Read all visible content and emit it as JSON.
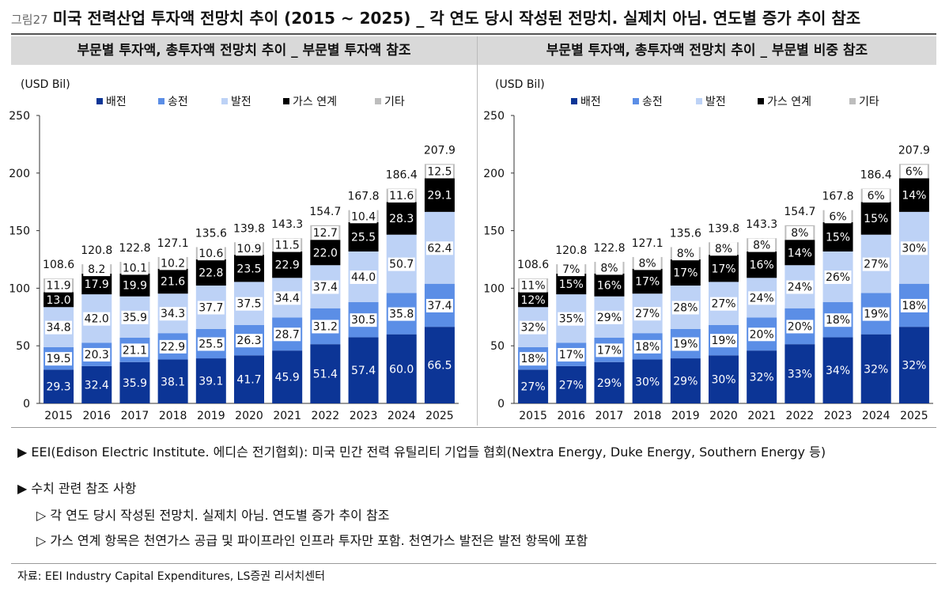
{
  "figure": {
    "number": "그림27",
    "title": "미국 전력산업 투자액 전망치 추이 (2015 ~ 2025) _ 각 연도 당시 작성된 전망치. 실제치 아님. 연도별 증가 추이 참조"
  },
  "colors": {
    "배전": "#0c3596",
    "송전": "#5b8ee6",
    "발전": "#bdd2f6",
    "가스 연계": "#000000",
    "기타": "#bdbdbd"
  },
  "chart_data": [
    {
      "type": "bar",
      "stacked": true,
      "panel_title": "부문별 투자액, 총투자액 전망치 추이 _ 부문별 투자액 참조",
      "unit_label": "(USD Bil)",
      "categories": [
        "2015",
        "2016",
        "2017",
        "2018",
        "2019",
        "2020",
        "2021",
        "2022",
        "2023",
        "2024",
        "2025"
      ],
      "series": [
        {
          "name": "배전",
          "values": [
            29.3,
            32.4,
            35.9,
            38.1,
            39.1,
            41.7,
            45.9,
            51.4,
            57.4,
            60.0,
            66.5
          ],
          "labels": [
            "29.3",
            "32.4",
            "35.9",
            "38.1",
            "39.1",
            "41.7",
            "45.9",
            "51.4",
            "57.4",
            "60.0",
            "66.5"
          ]
        },
        {
          "name": "송전",
          "values": [
            19.5,
            20.3,
            21.1,
            22.9,
            25.5,
            26.3,
            28.7,
            31.2,
            30.5,
            35.8,
            37.4
          ],
          "labels": [
            "19.5",
            "20.3",
            "21.1",
            "22.9",
            "25.5",
            "26.3",
            "28.7",
            "31.2",
            "30.5",
            "35.8",
            "37.4"
          ]
        },
        {
          "name": "발전",
          "values": [
            34.8,
            42.0,
            35.9,
            34.3,
            37.7,
            37.5,
            34.4,
            37.4,
            44.0,
            50.7,
            62.4
          ],
          "labels": [
            "34.8",
            "42.0",
            "35.9",
            "34.3",
            "37.7",
            "37.5",
            "34.4",
            "37.4",
            "44.0",
            "50.7",
            "62.4"
          ]
        },
        {
          "name": "가스 연계",
          "values": [
            13.0,
            17.9,
            19.9,
            21.6,
            22.8,
            23.5,
            22.9,
            22.0,
            25.5,
            28.3,
            29.1
          ],
          "labels": [
            "13.0",
            "17.9",
            "19.9",
            "21.6",
            "22.8",
            "23.5",
            "22.9",
            "22.0",
            "25.5",
            "28.3",
            "29.1"
          ]
        },
        {
          "name": "기타",
          "values": [
            11.9,
            8.2,
            10.1,
            10.2,
            10.6,
            10.9,
            11.5,
            12.7,
            10.4,
            11.6,
            12.5
          ],
          "labels": [
            "11.9",
            "8.2",
            "10.1",
            "10.2",
            "10.6",
            "10.9",
            "11.5",
            "12.7",
            "10.4",
            "11.6",
            "12.5"
          ]
        }
      ],
      "totals": [
        108.6,
        120.8,
        122.8,
        127.1,
        135.6,
        139.8,
        143.3,
        154.7,
        167.8,
        186.4,
        207.9
      ],
      "total_labels": [
        "108.6",
        "120.8",
        "122.8",
        "127.1",
        "135.6",
        "139.8",
        "143.3",
        "154.7",
        "167.8",
        "186.4",
        "207.9"
      ],
      "ylim": [
        0,
        250
      ],
      "yticks": [
        0,
        50,
        100,
        150,
        200,
        250
      ],
      "ytick_labels": [
        "0",
        "50",
        "100",
        "150",
        "200",
        "250"
      ],
      "grid": false,
      "legend_position": "top"
    },
    {
      "type": "bar",
      "stacked": true,
      "panel_title": "부문별 투자액, 총투자액 전망치 추이 _ 부문별 비중 참조",
      "unit_label": "(USD Bil)",
      "categories": [
        "2015",
        "2016",
        "2017",
        "2018",
        "2019",
        "2020",
        "2021",
        "2022",
        "2023",
        "2024",
        "2025"
      ],
      "series": [
        {
          "name": "배전",
          "values": [
            29.3,
            32.4,
            35.9,
            38.1,
            39.1,
            41.7,
            45.9,
            51.4,
            57.4,
            60.0,
            66.5
          ],
          "labels": [
            "27%",
            "27%",
            "29%",
            "30%",
            "29%",
            "30%",
            "32%",
            "33%",
            "34%",
            "32%",
            "32%"
          ]
        },
        {
          "name": "송전",
          "values": [
            19.5,
            20.3,
            21.1,
            22.9,
            25.5,
            26.3,
            28.7,
            31.2,
            30.5,
            35.8,
            37.4
          ],
          "labels": [
            "18%",
            "17%",
            "17%",
            "18%",
            "19%",
            "19%",
            "20%",
            "20%",
            "18%",
            "19%",
            "18%"
          ]
        },
        {
          "name": "발전",
          "values": [
            34.8,
            42.0,
            35.9,
            34.3,
            37.7,
            37.5,
            34.4,
            37.4,
            44.0,
            50.7,
            62.4
          ],
          "labels": [
            "32%",
            "35%",
            "29%",
            "27%",
            "28%",
            "27%",
            "24%",
            "24%",
            "26%",
            "27%",
            "30%"
          ]
        },
        {
          "name": "가스 연계",
          "values": [
            13.0,
            17.9,
            19.9,
            21.6,
            22.8,
            23.5,
            22.9,
            22.0,
            25.5,
            28.3,
            29.1
          ],
          "labels": [
            "12%",
            "15%",
            "16%",
            "17%",
            "17%",
            "17%",
            "16%",
            "14%",
            "15%",
            "15%",
            "14%"
          ]
        },
        {
          "name": "기타",
          "values": [
            11.9,
            8.2,
            10.1,
            10.2,
            10.6,
            10.9,
            11.5,
            12.7,
            10.4,
            11.6,
            12.5
          ],
          "labels": [
            "11%",
            "7%",
            "8%",
            "8%",
            "8%",
            "8%",
            "8%",
            "8%",
            "6%",
            "6%",
            "6%"
          ]
        }
      ],
      "totals": [
        108.6,
        120.8,
        122.8,
        127.1,
        135.6,
        139.8,
        143.3,
        154.7,
        167.8,
        186.4,
        207.9
      ],
      "total_labels": [
        "108.6",
        "120.8",
        "122.8",
        "127.1",
        "135.6",
        "139.8",
        "143.3",
        "154.7",
        "167.8",
        "186.4",
        "207.9"
      ],
      "ylim": [
        0,
        250
      ],
      "yticks": [
        0,
        50,
        100,
        150,
        200,
        250
      ],
      "ytick_labels": [
        "0",
        "50",
        "100",
        "150",
        "200",
        "250"
      ],
      "grid": false,
      "legend_position": "top"
    }
  ],
  "notes": [
    "▶ EEI(Edison Electric Institute. 에디슨 전기협회): 미국 민간 전력 유틸리티 기업들 협회(Nextra Energy, Duke Energy, Southern Energy 등)",
    "▶ 수치 관련 참조 사항",
    "▷ 각 연도 당시 작성된 전망치. 실제치 아님. 연도별 증가 추이 참조",
    "▷ 가스 연계 항목은 천연가스 공급 및 파이프라인 인프라 투자만 포함. 천연가스 발전은 발전 항목에 포함"
  ],
  "source": "자료: EEI Industry Capital Expenditures, LS증권 리서치센터"
}
